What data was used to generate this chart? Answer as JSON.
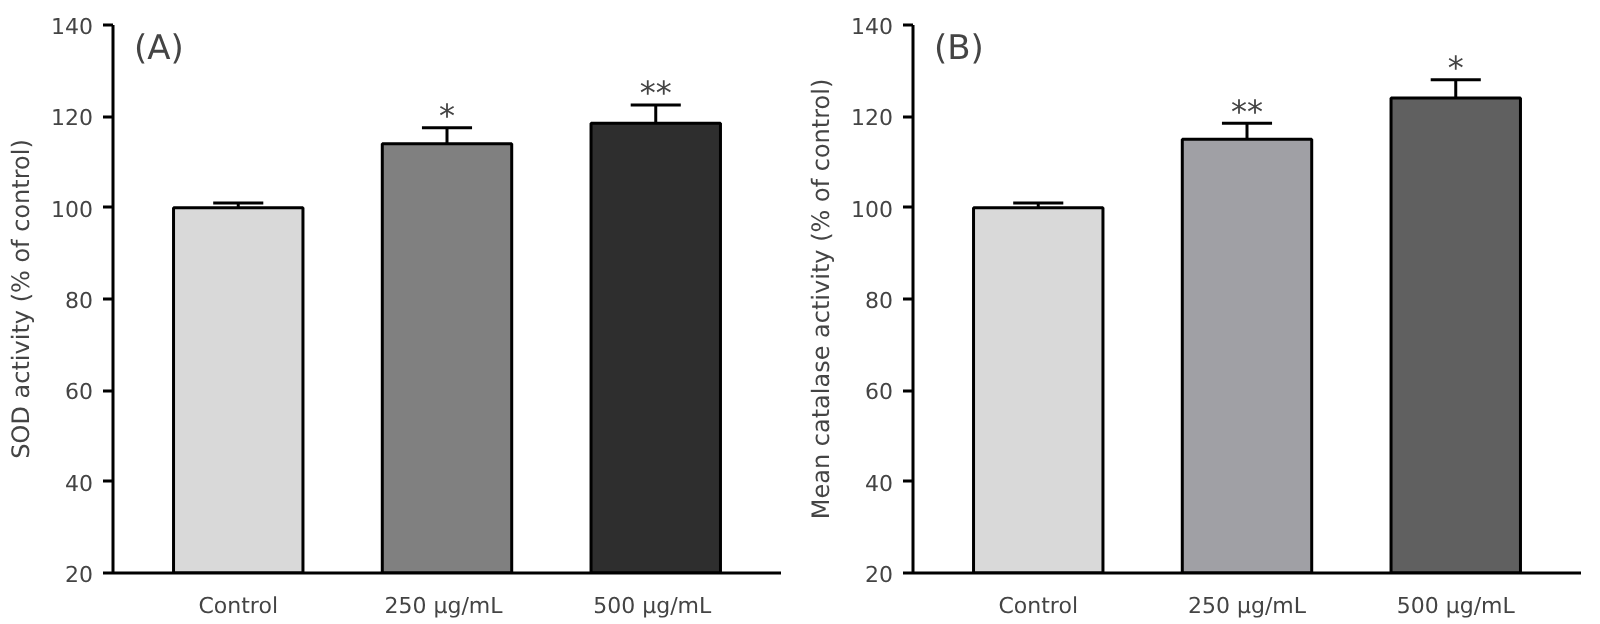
{
  "chart_data": [
    {
      "type": "bar",
      "ylabel": "SOD activity (% of control)",
      "categories": [
        "Control",
        "250  μg/mL",
        "500  μg/mL"
      ],
      "values": [
        100,
        114,
        118.5
      ],
      "errors": [
        1,
        3.5,
        4
      ],
      "colors": [
        "#d9d9d9",
        "#808080",
        "#2e2e2e"
      ],
      "ylim": [
        20,
        140
      ],
      "yticks": [
        20,
        40,
        60,
        80,
        100,
        120,
        140
      ],
      "grid": false,
      "annotations": [
        "(A)",
        {
          "text": "*",
          "x": "250  μg/mL",
          "y": 118.5
        },
        {
          "text": "**",
          "x": "500  μg/mL",
          "y": 123.5
        }
      ]
    },
    {
      "type": "bar",
      "ylabel": "Mean catalase activity (% of control)",
      "categories": [
        "Control",
        "250 μg/mL",
        "500 μg/mL"
      ],
      "values": [
        100,
        115,
        124
      ],
      "errors": [
        1,
        3.5,
        4
      ],
      "colors": [
        "#d9d9d9",
        "#a0a0a5",
        "#606060"
      ],
      "ylim": [
        20,
        140
      ],
      "yticks": [
        20,
        40,
        60,
        80,
        100,
        120,
        140
      ],
      "grid": false,
      "annotations": [
        "(B)",
        {
          "text": "**",
          "x": "250 μg/mL",
          "y": 119.5
        },
        {
          "text": "*",
          "x": "500 μg/mL",
          "y": 129
        }
      ]
    }
  ]
}
